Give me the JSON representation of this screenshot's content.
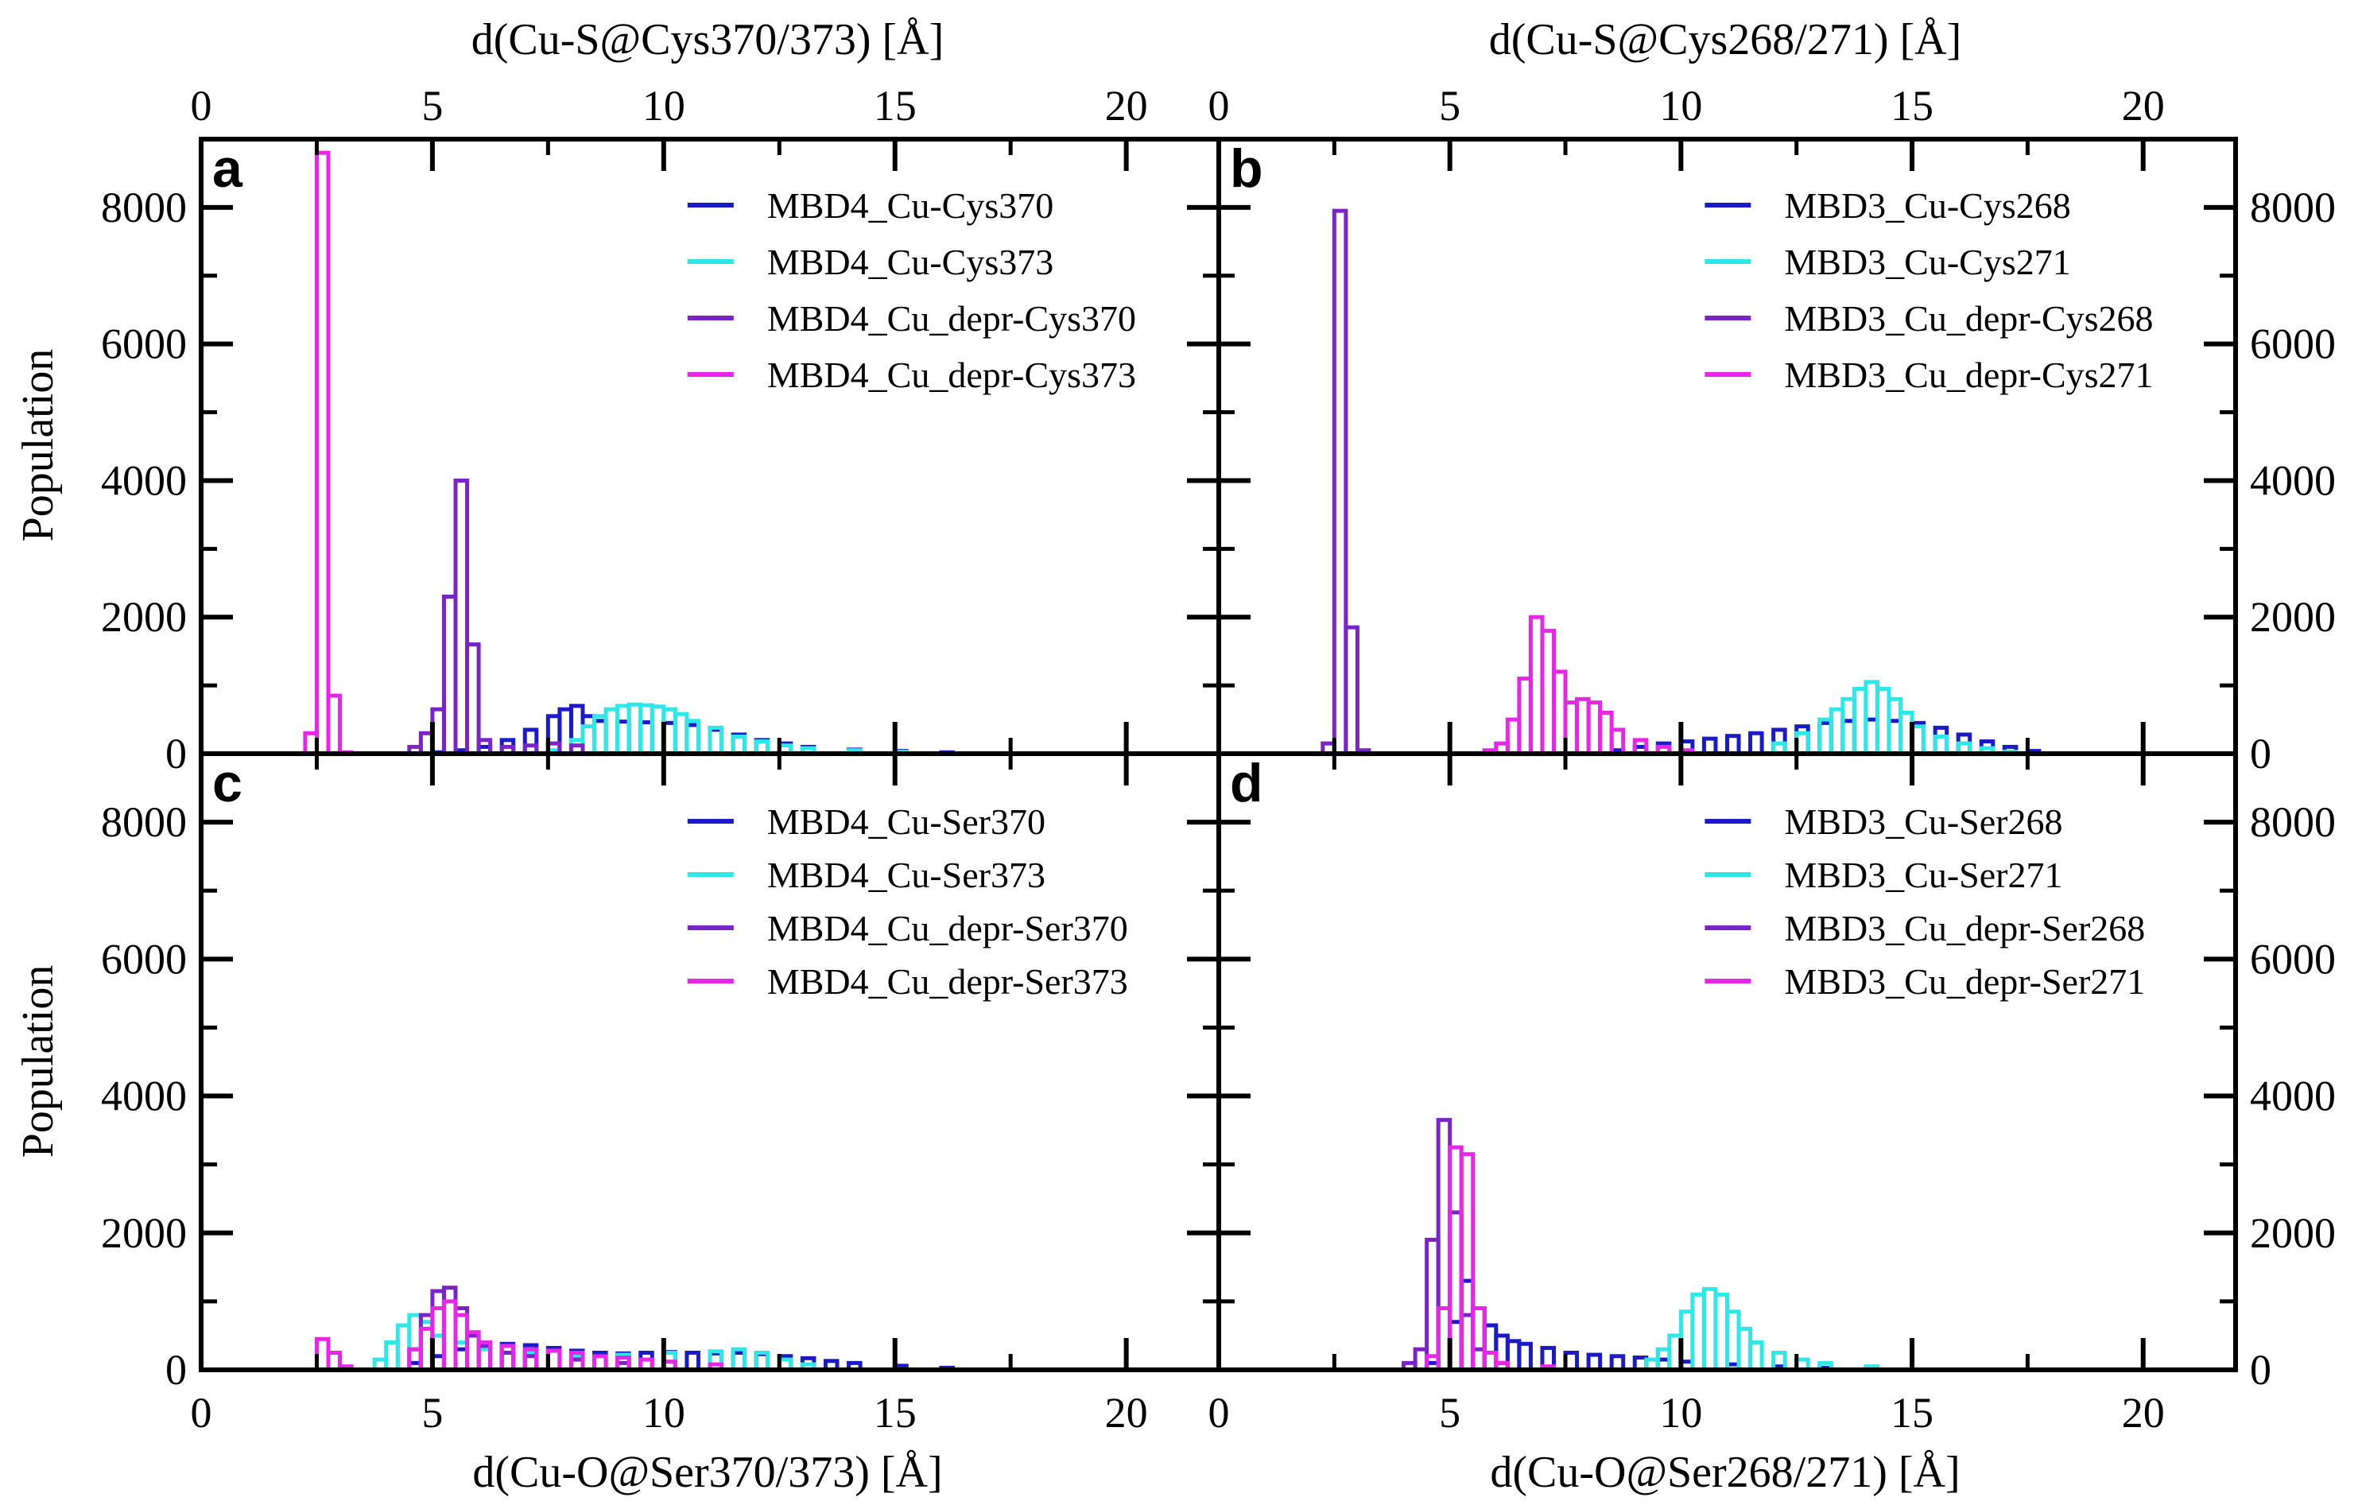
{
  "figure": {
    "top_left_axis_title": "d(Cu-S@Cys370/373) [Å]",
    "top_right_axis_title": "d(Cu-S@Cys268/271) [Å]",
    "bottom_left_axis_title": "d(Cu-O@Ser370/373) [Å]",
    "bottom_right_axis_title": "d(Cu-O@Ser268/271) [Å]",
    "ylabel": "Population",
    "x_tick_labels": [
      "0",
      "5",
      "10",
      "15",
      "20"
    ],
    "y_tick_labels": [
      "0",
      "2000",
      "4000",
      "6000",
      "8000"
    ]
  },
  "colors": {
    "blue": "#1a1ac8",
    "cyan": "#2ee8e8",
    "purple": "#7a24c8",
    "magenta": "#e826e8",
    "frame": "#000000"
  },
  "chart_data": [
    {
      "panel": "a",
      "type": "histogram",
      "xlabel": "d(Cu-S@Cys370/373) [Å]",
      "ylabel": "Population",
      "xlim": [
        0,
        22
      ],
      "ylim": [
        0,
        9000
      ],
      "bin_width": 0.25,
      "legend": "top-right",
      "series": [
        {
          "name": "MBD4_Cu-Cys370",
          "color": "blue",
          "bins": [
            [
              5,
              20
            ],
            [
              5.5,
              50
            ],
            [
              6,
              100
            ],
            [
              6.5,
              200
            ],
            [
              7,
              350
            ],
            [
              7.5,
              550
            ],
            [
              7.75,
              650
            ],
            [
              8,
              700
            ],
            [
              8.25,
              550
            ],
            [
              8.5,
              480
            ],
            [
              9,
              470
            ],
            [
              9.5,
              460
            ],
            [
              10,
              450
            ],
            [
              10.5,
              420
            ],
            [
              11,
              350
            ],
            [
              11.5,
              280
            ],
            [
              12,
              200
            ],
            [
              12.5,
              150
            ],
            [
              13,
              100
            ],
            [
              14,
              60
            ],
            [
              15,
              40
            ],
            [
              16,
              20
            ]
          ]
        },
        {
          "name": "MBD4_Cu-Cys373",
          "color": "cyan",
          "bins": [
            [
              7.5,
              50
            ],
            [
              8,
              200
            ],
            [
              8.25,
              400
            ],
            [
              8.5,
              550
            ],
            [
              8.75,
              650
            ],
            [
              9,
              700
            ],
            [
              9.25,
              720
            ],
            [
              9.5,
              710
            ],
            [
              9.75,
              690
            ],
            [
              10,
              650
            ],
            [
              10.25,
              580
            ],
            [
              10.5,
              480
            ],
            [
              11,
              380
            ],
            [
              11.5,
              250
            ],
            [
              12,
              180
            ],
            [
              12.5,
              120
            ],
            [
              13,
              80
            ],
            [
              14,
              50
            ],
            [
              15,
              30
            ]
          ]
        },
        {
          "name": "MBD4_Cu_depr-Cys370",
          "color": "purple",
          "bins": [
            [
              4.5,
              100
            ],
            [
              4.75,
              300
            ],
            [
              5,
              650
            ],
            [
              5.25,
              2300
            ],
            [
              5.5,
              4000
            ],
            [
              5.75,
              1600
            ],
            [
              6,
              200
            ],
            [
              6.5,
              100
            ],
            [
              7,
              120
            ],
            [
              7.5,
              150
            ],
            [
              8,
              120
            ]
          ]
        },
        {
          "name": "MBD4_Cu_depr-Cys373",
          "color": "magenta",
          "bins": [
            [
              2.25,
              300
            ],
            [
              2.5,
              8800
            ],
            [
              2.75,
              850
            ],
            [
              3,
              20
            ]
          ]
        }
      ]
    },
    {
      "panel": "b",
      "type": "histogram",
      "xlabel": "d(Cu-S@Cys268/271) [Å]",
      "ylabel": "Population",
      "xlim": [
        0,
        22
      ],
      "ylim": [
        0,
        9000
      ],
      "bin_width": 0.25,
      "legend": "top-right",
      "series": [
        {
          "name": "MBD3_Cu-Cys268",
          "color": "blue",
          "bins": [
            [
              8.5,
              50
            ],
            [
              9,
              100
            ],
            [
              9.5,
              150
            ],
            [
              10,
              180
            ],
            [
              10.5,
              220
            ],
            [
              11,
              260
            ],
            [
              11.5,
              300
            ],
            [
              12,
              350
            ],
            [
              12.5,
              400
            ],
            [
              13,
              450
            ],
            [
              13.5,
              480
            ],
            [
              14,
              500
            ],
            [
              14.5,
              480
            ],
            [
              15,
              450
            ],
            [
              15.5,
              380
            ],
            [
              16,
              280
            ],
            [
              16.5,
              180
            ],
            [
              17,
              100
            ],
            [
              17.5,
              40
            ]
          ]
        },
        {
          "name": "MBD3_Cu-Cys271",
          "color": "cyan",
          "bins": [
            [
              12,
              150
            ],
            [
              12.5,
              300
            ],
            [
              13,
              500
            ],
            [
              13.25,
              650
            ],
            [
              13.5,
              800
            ],
            [
              13.75,
              950
            ],
            [
              14,
              1050
            ],
            [
              14.25,
              950
            ],
            [
              14.5,
              800
            ],
            [
              14.75,
              600
            ],
            [
              15,
              400
            ],
            [
              15.5,
              250
            ],
            [
              16,
              150
            ],
            [
              16.5,
              80
            ],
            [
              17,
              30
            ]
          ]
        },
        {
          "name": "MBD3_Cu_depr-Cys268",
          "color": "purple",
          "bins": [
            [
              2.25,
              150
            ],
            [
              2.5,
              7950
            ],
            [
              2.75,
              1850
            ],
            [
              3,
              50
            ]
          ]
        },
        {
          "name": "MBD3_Cu_depr-Cys271",
          "color": "magenta",
          "bins": [
            [
              5.75,
              50
            ],
            [
              6,
              150
            ],
            [
              6.25,
              500
            ],
            [
              6.5,
              1100
            ],
            [
              6.75,
              2000
            ],
            [
              7,
              1800
            ],
            [
              7.25,
              1200
            ],
            [
              7.5,
              750
            ],
            [
              7.75,
              800
            ],
            [
              8,
              750
            ],
            [
              8.25,
              600
            ],
            [
              8.5,
              350
            ],
            [
              9,
              200
            ],
            [
              9.5,
              100
            ],
            [
              10,
              50
            ]
          ]
        }
      ]
    },
    {
      "panel": "c",
      "type": "histogram",
      "xlabel": "d(Cu-O@Ser370/373) [Å]",
      "ylabel": "Population",
      "xlim": [
        0,
        22
      ],
      "ylim": [
        0,
        9000
      ],
      "bin_width": 0.25,
      "legend": "top-right",
      "series": [
        {
          "name": "MBD4_Cu-Ser370",
          "color": "blue",
          "bins": [
            [
              4.5,
              100
            ],
            [
              5,
              200
            ],
            [
              5.5,
              300
            ],
            [
              6,
              350
            ],
            [
              6.5,
              380
            ],
            [
              7,
              360
            ],
            [
              7.5,
              320
            ],
            [
              8,
              280
            ],
            [
              8.5,
              250
            ],
            [
              9,
              240
            ],
            [
              9.5,
              250
            ],
            [
              10,
              260
            ],
            [
              10.5,
              250
            ],
            [
              11,
              240
            ],
            [
              11.5,
              250
            ],
            [
              12,
              230
            ],
            [
              12.5,
              200
            ],
            [
              13,
              170
            ],
            [
              13.5,
              130
            ],
            [
              14,
              100
            ],
            [
              15,
              60
            ],
            [
              16,
              30
            ]
          ]
        },
        {
          "name": "MBD4_Cu-Ser373",
          "color": "cyan",
          "bins": [
            [
              3.75,
              150
            ],
            [
              4,
              400
            ],
            [
              4.25,
              650
            ],
            [
              4.5,
              800
            ],
            [
              4.75,
              700
            ],
            [
              5,
              500
            ],
            [
              5.5,
              400
            ],
            [
              6,
              300
            ],
            [
              7,
              250
            ],
            [
              8,
              200
            ],
            [
              9,
              220
            ],
            [
              10,
              250
            ],
            [
              11,
              270
            ],
            [
              11.5,
              300
            ],
            [
              12,
              250
            ],
            [
              12.5,
              150
            ],
            [
              13,
              80
            ]
          ]
        },
        {
          "name": "MBD4_Cu_depr-Ser370",
          "color": "purple",
          "bins": [
            [
              4.5,
              300
            ],
            [
              4.75,
              800
            ],
            [
              5,
              1150
            ],
            [
              5.25,
              1200
            ],
            [
              5.5,
              900
            ],
            [
              5.75,
              500
            ],
            [
              6,
              350
            ],
            [
              6.5,
              250
            ],
            [
              7,
              200
            ],
            [
              8,
              150
            ],
            [
              9,
              100
            ]
          ]
        },
        {
          "name": "MBD4_Cu_depr-Ser373",
          "color": "magenta",
          "bins": [
            [
              2.5,
              450
            ],
            [
              2.75,
              250
            ],
            [
              3,
              50
            ],
            [
              4.5,
              300
            ],
            [
              4.75,
              600
            ],
            [
              5,
              900
            ],
            [
              5.25,
              1000
            ],
            [
              5.5,
              800
            ],
            [
              5.75,
              550
            ],
            [
              6,
              400
            ],
            [
              6.5,
              350
            ],
            [
              7,
              300
            ],
            [
              7.5,
              280
            ],
            [
              8,
              250
            ],
            [
              8.5,
              200
            ],
            [
              9,
              180
            ],
            [
              9.5,
              150
            ],
            [
              10,
              120
            ],
            [
              11,
              80
            ]
          ]
        }
      ]
    },
    {
      "panel": "d",
      "type": "histogram",
      "xlabel": "d(Cu-O@Ser268/271) [Å]",
      "ylabel": "Population",
      "xlim": [
        0,
        22
      ],
      "ylim": [
        0,
        9000
      ],
      "bin_width": 0.25,
      "legend": "top-right",
      "series": [
        {
          "name": "MBD3_Cu-Ser268",
          "color": "blue",
          "bins": [
            [
              4.5,
              100
            ],
            [
              5,
              700
            ],
            [
              5.25,
              1300
            ],
            [
              5.5,
              900
            ],
            [
              5.75,
              650
            ],
            [
              6,
              500
            ],
            [
              6.25,
              420
            ],
            [
              6.5,
              380
            ],
            [
              7,
              320
            ],
            [
              7.5,
              250
            ],
            [
              8,
              220
            ],
            [
              8.5,
              200
            ],
            [
              9,
              180
            ],
            [
              9.5,
              150
            ],
            [
              10,
              120
            ],
            [
              11,
              80
            ],
            [
              12,
              50
            ],
            [
              13,
              30
            ]
          ]
        },
        {
          "name": "MBD3_Cu-Ser271",
          "color": "cyan",
          "bins": [
            [
              9.25,
              150
            ],
            [
              9.5,
              300
            ],
            [
              9.75,
              500
            ],
            [
              10,
              850
            ],
            [
              10.25,
              1100
            ],
            [
              10.5,
              1180
            ],
            [
              10.75,
              1100
            ],
            [
              11,
              850
            ],
            [
              11.25,
              600
            ],
            [
              11.5,
              400
            ],
            [
              12,
              250
            ],
            [
              12.5,
              150
            ],
            [
              13,
              100
            ],
            [
              14,
              50
            ]
          ]
        },
        {
          "name": "MBD3_Cu_depr-Ser268",
          "color": "purple",
          "bins": [
            [
              4,
              100
            ],
            [
              4.25,
              300
            ],
            [
              4.5,
              1900
            ],
            [
              4.75,
              3650
            ],
            [
              5,
              2300
            ],
            [
              5.25,
              800
            ],
            [
              5.5,
              300
            ],
            [
              6,
              100
            ]
          ]
        },
        {
          "name": "MBD3_Cu_depr-Ser271",
          "color": "magenta",
          "bins": [
            [
              4.5,
              200
            ],
            [
              4.75,
              900
            ],
            [
              5,
              3250
            ],
            [
              5.25,
              3150
            ],
            [
              5.5,
              900
            ],
            [
              5.75,
              250
            ],
            [
              6,
              100
            ],
            [
              7,
              50
            ]
          ]
        }
      ]
    }
  ]
}
